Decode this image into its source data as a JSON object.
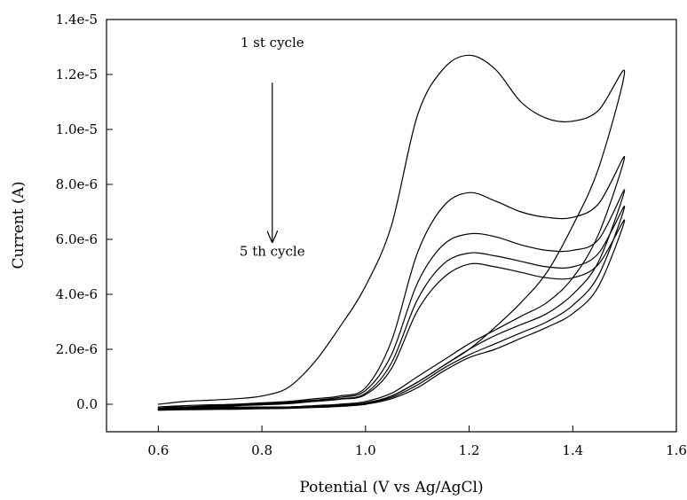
{
  "chart_data": {
    "type": "line",
    "xlabel": "Potential (V vs Ag/AgCl)",
    "ylabel": "Current (A)",
    "xlim": [
      0.5,
      1.6
    ],
    "ylim": [
      -1e-06,
      1.4e-05
    ],
    "xticks": [
      0.6,
      0.8,
      1.0,
      1.2,
      1.4,
      1.6
    ],
    "xtick_labels": [
      "0.6",
      "0.8",
      "1.0",
      "1.2",
      "1.4",
      "1.6"
    ],
    "yticks": [
      0,
      2e-06,
      4e-06,
      6e-06,
      8e-06,
      1e-05,
      1.2e-05,
      1.4e-05
    ],
    "ytick_labels": [
      "0.0",
      "2.0e-6",
      "4.0e-6",
      "6.0e-6",
      "8.0e-6",
      "1.0e-5",
      "1.2e-5",
      "1.4e-5"
    ],
    "grid": false,
    "annotations": [
      {
        "text": "1 st cycle",
        "x": 0.82,
        "y": 1.3e-05
      },
      {
        "text": "5 th cycle",
        "x": 0.82,
        "y": 5.4e-06
      }
    ],
    "arrow": {
      "x": 0.82,
      "y_start": 1.17e-05,
      "y_end": 5.9e-06
    },
    "series": [
      {
        "x": [
          0.6,
          0.65,
          0.7,
          0.75,
          0.8,
          0.85,
          0.9,
          0.95,
          1.0,
          1.05,
          1.1,
          1.15,
          1.2,
          1.25,
          1.3,
          1.35,
          1.4,
          1.45,
          1.5,
          1.45,
          1.4,
          1.35,
          1.3,
          1.25,
          1.2,
          1.15,
          1.1,
          1.05,
          1.0,
          0.95,
          0.9,
          0.85,
          0.8,
          0.75,
          0.7,
          0.65,
          0.6
        ],
        "y": [
          0.0,
          1e-07,
          1.5e-07,
          2e-07,
          3e-07,
          6e-07,
          1.5e-06,
          2.8e-06,
          4.3e-06,
          6.5e-06,
          1.05e-05,
          1.22e-05,
          1.27e-05,
          1.22e-05,
          1.1e-05,
          1.04e-05,
          1.03e-05,
          1.07e-05,
          1.21e-05,
          8.6e-06,
          6.5e-06,
          4.8e-06,
          3.7e-06,
          2.8e-06,
          2e-06,
          1.4e-06,
          8e-07,
          3e-07,
          0.0,
          -5e-08,
          -1e-07,
          -1e-07,
          -1e-07,
          -1e-07,
          -1e-07,
          -1e-07,
          -1e-07
        ]
      },
      {
        "x": [
          0.6,
          0.65,
          0.7,
          0.75,
          0.8,
          0.85,
          0.9,
          0.95,
          1.0,
          1.05,
          1.1,
          1.15,
          1.2,
          1.25,
          1.3,
          1.35,
          1.4,
          1.45,
          1.5,
          1.45,
          1.4,
          1.35,
          1.3,
          1.25,
          1.2,
          1.15,
          1.1,
          1.05,
          1.0,
          0.95,
          0.9,
          0.85,
          0.8,
          0.75,
          0.7,
          0.65,
          0.6
        ],
        "y": [
          -1e-07,
          -5e-08,
          -2e-08,
          0.0,
          5e-08,
          1e-07,
          2e-07,
          3e-07,
          6e-07,
          2.3e-06,
          5.5e-06,
          7.2e-06,
          7.7e-06,
          7.4e-06,
          7e-06,
          6.8e-06,
          6.8e-06,
          7.3e-06,
          9e-06,
          6.2e-06,
          4.6e-06,
          3.7e-06,
          3.2e-06,
          2.7e-06,
          2.2e-06,
          1.6e-06,
          1e-06,
          4e-07,
          1e-07,
          0.0,
          -5e-08,
          -1e-07,
          -1e-07,
          -1e-07,
          -1e-07,
          -1.5e-07,
          -1.5e-07
        ]
      },
      {
        "x": [
          0.6,
          0.65,
          0.7,
          0.75,
          0.8,
          0.85,
          0.9,
          0.95,
          1.0,
          1.05,
          1.1,
          1.15,
          1.2,
          1.25,
          1.3,
          1.35,
          1.4,
          1.45,
          1.5,
          1.45,
          1.4,
          1.35,
          1.3,
          1.25,
          1.2,
          1.15,
          1.1,
          1.05,
          1.0,
          0.95,
          0.9,
          0.85,
          0.8,
          0.75,
          0.7,
          0.65,
          0.6
        ],
        "y": [
          -1.5e-07,
          -1e-07,
          -5e-08,
          0.0,
          3e-08,
          8e-08,
          1.5e-07,
          2.5e-07,
          5e-07,
          1.8e-06,
          4.4e-06,
          5.8e-06,
          6.2e-06,
          6.1e-06,
          5.8e-06,
          5.6e-06,
          5.6e-06,
          6e-06,
          7.8e-06,
          5.2e-06,
          4e-06,
          3.3e-06,
          2.9e-06,
          2.5e-06,
          2e-06,
          1.4e-06,
          8e-07,
          3e-07,
          5e-08,
          -3e-08,
          -8e-08,
          -1e-07,
          -1.2e-07,
          -1.2e-07,
          -1.3e-07,
          -1.5e-07,
          -1.8e-07
        ]
      },
      {
        "x": [
          0.6,
          0.65,
          0.7,
          0.75,
          0.8,
          0.85,
          0.9,
          0.95,
          1.0,
          1.05,
          1.1,
          1.15,
          1.2,
          1.25,
          1.3,
          1.35,
          1.4,
          1.45,
          1.5,
          1.45,
          1.4,
          1.35,
          1.3,
          1.25,
          1.2,
          1.15,
          1.1,
          1.05,
          1.0,
          0.95,
          0.9,
          0.85,
          0.8,
          0.75,
          0.7,
          0.65,
          0.6
        ],
        "y": [
          -1.8e-07,
          -1.2e-07,
          -8e-08,
          -3e-08,
          0.0,
          5e-08,
          1.2e-07,
          2e-07,
          4e-07,
          1.5e-06,
          3.8e-06,
          5.1e-06,
          5.5e-06,
          5.4e-06,
          5.2e-06,
          5e-06,
          5e-06,
          5.5e-06,
          7.2e-06,
          4.7e-06,
          3.6e-06,
          3e-06,
          2.6e-06,
          2.2e-06,
          1.8e-06,
          1.3e-06,
          7e-07,
          2.5e-07,
          3e-08,
          -5e-08,
          -1e-07,
          -1.2e-07,
          -1.4e-07,
          -1.5e-07,
          -1.6e-07,
          -1.8e-07,
          -2e-07
        ]
      },
      {
        "x": [
          0.6,
          0.65,
          0.7,
          0.75,
          0.8,
          0.85,
          0.9,
          0.95,
          1.0,
          1.05,
          1.1,
          1.15,
          1.2,
          1.25,
          1.3,
          1.35,
          1.4,
          1.45,
          1.5,
          1.45,
          1.4,
          1.35,
          1.3,
          1.25,
          1.2,
          1.15,
          1.1,
          1.05,
          1.0,
          0.95,
          0.9,
          0.85,
          0.8,
          0.75,
          0.7,
          0.65,
          0.6
        ],
        "y": [
          -2e-07,
          -1.5e-07,
          -1e-07,
          -5e-08,
          -2e-08,
          2e-08,
          1e-07,
          1.8e-07,
          3.5e-07,
          1.3e-06,
          3.4e-06,
          4.6e-06,
          5.1e-06,
          5e-06,
          4.8e-06,
          4.6e-06,
          4.6e-06,
          5.1e-06,
          6.7e-06,
          4.3e-06,
          3.3e-06,
          2.8e-06,
          2.4e-06,
          2e-06,
          1.7e-06,
          1.2e-06,
          6e-07,
          2e-07,
          0.0,
          -8e-08,
          -1.2e-07,
          -1.5e-07,
          -1.6e-07,
          -1.8e-07,
          -1.9e-07,
          -2e-07,
          -2.2e-07
        ]
      }
    ]
  }
}
